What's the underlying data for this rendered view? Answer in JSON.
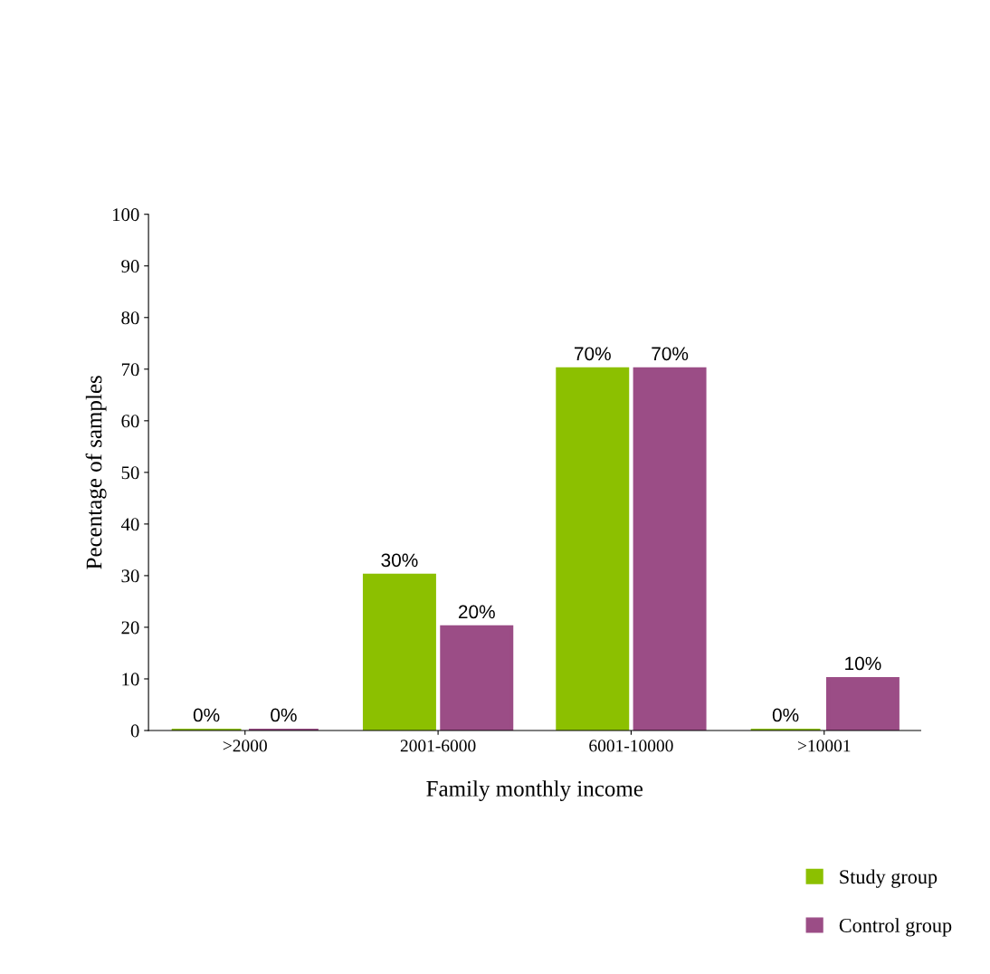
{
  "chart_data": {
    "type": "bar",
    "xlabel": "Family monthly income",
    "ylabel": "Pecentage of samples",
    "categories": [
      ">2000",
      "2001-6000",
      "6001-10000",
      ">10001"
    ],
    "series": [
      {
        "name": "Study group",
        "color": "#8cc000",
        "values": [
          0,
          30,
          70,
          0
        ],
        "value_labels": [
          "0%",
          "30%",
          "70%",
          "0%"
        ]
      },
      {
        "name": "Control group",
        "color": "#9b4d86",
        "values": [
          0,
          20,
          70,
          10
        ],
        "value_labels": [
          "0%",
          "20%",
          "70%",
          "10%"
        ]
      }
    ],
    "ylim": [
      0,
      100
    ],
    "yticks": [
      0,
      10,
      20,
      30,
      40,
      50,
      60,
      70,
      80,
      90,
      100
    ],
    "grid": false,
    "legend": "bottom right"
  }
}
